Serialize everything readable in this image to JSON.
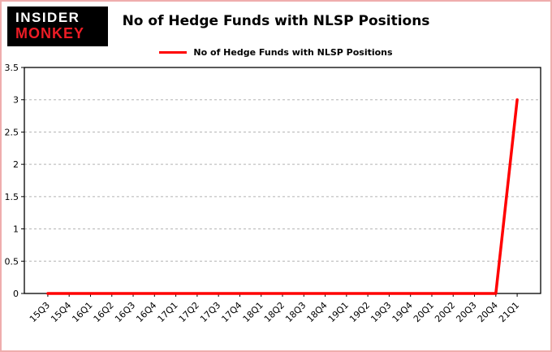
{
  "logo": {
    "line1": "INSIDER",
    "line2": "MONKEY"
  },
  "header": {
    "title": "No of Hedge Funds with NLSP Positions"
  },
  "legend": {
    "label": "No of Hedge Funds with NLSP Positions"
  },
  "colors": {
    "line": "#ff0000",
    "grid": "#b3b3b3",
    "axis": "#000000",
    "tick_text": "#000000",
    "page_border": "#efadad",
    "logo_bg": "#000000",
    "logo_insider": "#ffffff",
    "logo_monkey": "#ee1c25"
  },
  "chart_data": {
    "type": "line",
    "title": "No of Hedge Funds with NLSP Positions",
    "categories": [
      "15Q3",
      "15Q4",
      "16Q1",
      "16Q2",
      "16Q3",
      "16Q4",
      "17Q1",
      "17Q2",
      "17Q3",
      "17Q4",
      "18Q1",
      "18Q2",
      "18Q3",
      "18Q4",
      "19Q1",
      "19Q2",
      "19Q3",
      "19Q4",
      "20Q1",
      "20Q2",
      "20Q3",
      "20Q4",
      "21Q1"
    ],
    "series": [
      {
        "name": "No of Hedge Funds with NLSP Positions",
        "values": [
          0,
          0,
          0,
          0,
          0,
          0,
          0,
          0,
          0,
          0,
          0,
          0,
          0,
          0,
          0,
          0,
          0,
          0,
          0,
          0,
          0,
          0,
          3
        ]
      }
    ],
    "xlabel": "",
    "ylabel": "",
    "ylim": [
      0,
      3.5
    ],
    "yticks": [
      0,
      0.5,
      1,
      1.5,
      2,
      2.5,
      3,
      3.5
    ],
    "grid": true,
    "grid_style": "dashed",
    "legend_position": "top-center"
  }
}
